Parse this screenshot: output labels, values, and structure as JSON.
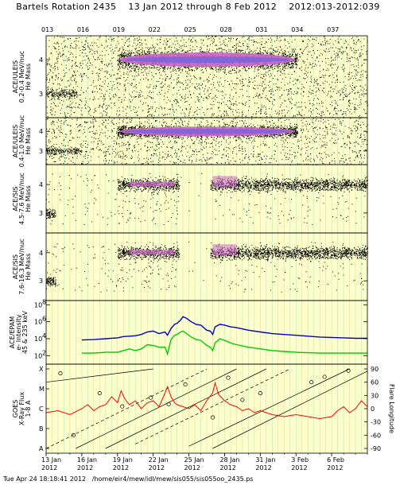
{
  "header": {
    "title": "Bartels Rotation 2435    13 Jan 2012 through 8 Feb 2012    2012:013-2012:039"
  },
  "footer": {
    "text": "Tue Apr 24 18:18:41 2012   /home/eir4/mew/idl/mew/sis055/sis055oo_2435.ps"
  },
  "colors": {
    "background_band": "#ffffcc",
    "vgrid": "#bfe8bf",
    "dense_core": "#cc66cc",
    "dense_center": "#7766dd",
    "epam_high": "#0000cc",
    "epam_low": "#00cc00",
    "xray": "#ff0000",
    "scatter": "#000000"
  },
  "chart_data": [
    {
      "type": "scatter",
      "ylabel_lines": [
        "ACE/ULEIS",
        "0.2-0.4 MeV/nuc",
        "He Mass"
      ],
      "yticks": [
        "4",
        "3"
      ],
      "doy_ticks": [
        "013",
        "016",
        "019",
        "022",
        "025",
        "028",
        "031",
        "034",
        "037"
      ],
      "xlim_doy": [
        13,
        40
      ],
      "ylim": [
        2.3,
        4.7
      ],
      "features": {
        "he4_band": {
          "center": 4.0,
          "start_doy": 19.0,
          "end_doy": 34.1
        },
        "he3_band": {
          "center": 3.0,
          "start_doy": 13.0,
          "end_doy": 15.6
        },
        "background_density": "high"
      }
    },
    {
      "type": "scatter",
      "ylabel_lines": [
        "ACE/ULEIS",
        "0.4-1.0 MeV/nuc",
        "He Mass"
      ],
      "yticks": [
        "4",
        "3"
      ],
      "xlim_doy": [
        13,
        40
      ],
      "ylim": [
        2.3,
        4.7
      ],
      "features": {
        "he4_band": {
          "center": 4.0,
          "start_doy": 19.0,
          "end_doy": 34.1
        },
        "he3_band": {
          "center": 3.0,
          "start_doy": 13.0,
          "end_doy": 16.0
        },
        "background_density": "medium"
      }
    },
    {
      "type": "scatter",
      "ylabel_lines": [
        "ACE/SIS",
        "4.5-7.6 MeV/nuc",
        "He Mass"
      ],
      "yticks": [
        "4",
        "3"
      ],
      "xlim_doy": [
        13,
        40
      ],
      "ylim": [
        2.3,
        4.7
      ],
      "features": {
        "he4_band": {
          "center": 4.0,
          "start_doy": 19.0,
          "end_doy": 40.0,
          "gap_doy": [
            24.2,
            26.8
          ]
        },
        "he3_band": {
          "center": 3.0,
          "start_doy": 13.0,
          "end_doy": 13.8
        }
      }
    },
    {
      "type": "scatter",
      "ylabel_lines": [
        "ACE/SIS",
        "7.6-16.3 MeV/nuc",
        "He Mass"
      ],
      "yticks": [
        "4",
        "3"
      ],
      "xlim_doy": [
        13,
        40
      ],
      "ylim": [
        2.3,
        4.7
      ],
      "features": {
        "he4_band": {
          "center": 4.0,
          "start_doy": 19.0,
          "end_doy": 40.0,
          "gap_doy": [
            24.2,
            26.8
          ]
        },
        "he3_band": {
          "center": 3.0,
          "start_doy": 13.0,
          "end_doy": 13.8
        }
      }
    },
    {
      "type": "line",
      "ylabel_lines": [
        "ACE/EPAM",
        "e- Intensity",
        "45 & 235 keV"
      ],
      "yscale": "log",
      "ylim_exp": [
        1,
        8.5
      ],
      "ytick_labels": [
        {
          "base": "10",
          "exp": "8"
        },
        {
          "base": "10",
          "exp": "6"
        },
        {
          "base": "10",
          "exp": "4"
        },
        {
          "base": "10",
          "exp": "2"
        }
      ],
      "ytick_exps": [
        8,
        6,
        4,
        2
      ],
      "xlim_doy": [
        13,
        40
      ],
      "series": [
        {
          "color_key": "epam_high",
          "x": [
            16.0,
            17,
            18,
            19,
            19.5,
            20,
            20.5,
            21,
            21.5,
            22,
            22.5,
            23,
            23.2,
            23.5,
            23.8,
            24,
            24.3,
            24.5,
            24.8,
            25.2,
            25.6,
            26,
            26.5,
            26.8,
            27.0,
            27.2,
            27.6,
            28,
            28.5,
            29,
            30,
            31,
            32,
            33,
            34,
            35,
            36,
            37,
            38,
            39,
            40
          ],
          "y_exp": [
            3.85,
            3.9,
            4.0,
            4.1,
            4.25,
            4.3,
            4.35,
            4.5,
            4.8,
            4.9,
            4.6,
            4.8,
            4.4,
            5.2,
            5.7,
            5.8,
            6.2,
            6.6,
            6.4,
            6.0,
            5.7,
            5.6,
            5.0,
            4.9,
            4.5,
            5.4,
            5.7,
            5.6,
            5.4,
            5.3,
            5.0,
            4.8,
            4.6,
            4.5,
            4.4,
            4.3,
            4.2,
            4.15,
            4.1,
            4.05,
            4.05
          ]
        },
        {
          "color_key": "epam_low",
          "x": [
            16.0,
            17,
            18,
            19,
            19.5,
            20,
            20.5,
            21,
            21.5,
            22,
            22.5,
            23,
            23.2,
            23.5,
            23.8,
            24,
            24.3,
            24.5,
            24.8,
            25.2,
            25.6,
            26,
            26.5,
            26.8,
            27.0,
            27.2,
            27.6,
            28,
            28.5,
            29,
            30,
            31,
            32,
            33,
            34,
            35,
            36,
            37,
            38,
            39,
            40
          ],
          "y_exp": [
            2.3,
            2.3,
            2.4,
            2.4,
            2.6,
            2.8,
            2.6,
            2.8,
            3.3,
            3.2,
            3.0,
            3.0,
            2.2,
            3.9,
            4.4,
            4.5,
            4.8,
            4.9,
            4.6,
            4.2,
            3.9,
            3.8,
            3.2,
            3.0,
            2.6,
            3.5,
            4.0,
            3.8,
            3.5,
            3.3,
            3.0,
            2.8,
            2.6,
            2.5,
            2.4,
            2.35,
            2.3,
            2.3,
            2.3,
            2.3,
            2.3
          ]
        }
      ]
    },
    {
      "type": "line",
      "ylabel_lines": [
        "GOES",
        "X-Ray Flux",
        "1-8 A"
      ],
      "left_ticks": [
        "X",
        "M",
        "C",
        "B",
        "A"
      ],
      "right_ticks": [
        "90",
        "60",
        "30",
        "0",
        "-30",
        "-60",
        "-90"
      ],
      "right_label": "Flare Longitude",
      "xlim_doy": [
        13,
        40
      ],
      "xray_class_levels": {
        "A": 0,
        "B": 1,
        "C": 2,
        "M": 3,
        "X": 4
      },
      "xray_series": {
        "x": [
          13,
          14,
          15,
          16,
          16.5,
          17,
          17.5,
          18,
          18.5,
          19,
          19.3,
          19.6,
          20,
          20.5,
          21,
          21.5,
          22,
          22.5,
          23,
          23.2,
          23.5,
          23.8,
          24,
          24.5,
          25,
          25.5,
          26,
          26.5,
          27,
          27.2,
          27.5,
          28,
          28.5,
          29,
          29.5,
          30,
          30.5,
          31,
          31.5,
          32,
          33,
          34,
          35,
          36,
          37,
          37.5,
          38,
          38.5,
          39,
          39.5,
          40
        ],
        "y_class": [
          1.8,
          1.9,
          1.7,
          2.0,
          2.2,
          1.9,
          2.1,
          2.2,
          2.6,
          2.3,
          2.9,
          2.5,
          2.2,
          2.4,
          2.0,
          2.3,
          2.4,
          2.1,
          2.8,
          3.1,
          2.6,
          2.3,
          2.2,
          2.1,
          2.0,
          2.2,
          1.9,
          2.4,
          2.8,
          3.3,
          2.7,
          2.4,
          2.2,
          2.1,
          1.9,
          2.0,
          1.8,
          1.9,
          1.8,
          1.7,
          1.6,
          1.7,
          1.6,
          1.5,
          1.6,
          1.9,
          2.1,
          1.8,
          2.0,
          2.4,
          2.1
        ]
      },
      "longitude_tracks": [
        {
          "x0": 13.0,
          "lon0": 60,
          "x1": 22.0,
          "lon1": 90
        },
        {
          "x0": 13.0,
          "lon0": -90,
          "x1": 26.5,
          "lon1": 90
        },
        {
          "x0": 15.5,
          "lon0": -90,
          "x1": 29.0,
          "lon1": 90
        },
        {
          "x0": 18.0,
          "lon0": -90,
          "x1": 31.5,
          "lon1": 90
        },
        {
          "x0": 20.5,
          "lon0": -80,
          "x1": 33.5,
          "lon1": 90
        },
        {
          "x0": 25.0,
          "lon0": -85,
          "x1": 38.5,
          "lon1": 90
        },
        {
          "x0": 27.0,
          "lon0": -90,
          "x1": 40.0,
          "lon1": 85
        }
      ],
      "flare_markers": [
        {
          "x": 14.2,
          "lon": 80
        },
        {
          "x": 15.3,
          "lon": -60
        },
        {
          "x": 17.5,
          "lon": 35
        },
        {
          "x": 19.4,
          "lon": 5
        },
        {
          "x": 21.8,
          "lon": 25
        },
        {
          "x": 23.3,
          "lon": 10
        },
        {
          "x": 24.7,
          "lon": 55
        },
        {
          "x": 27.0,
          "lon": -20
        },
        {
          "x": 28.3,
          "lon": 70
        },
        {
          "x": 29.5,
          "lon": 20
        },
        {
          "x": 31.0,
          "lon": 35
        },
        {
          "x": 36.4,
          "lon": 72
        },
        {
          "x": 38.4,
          "lon": 86
        },
        {
          "x": 35.3,
          "lon": 60
        }
      ]
    }
  ],
  "x_axis": {
    "doy_positions": [
      13,
      16,
      19,
      22,
      25,
      28,
      31,
      34,
      37
    ],
    "date_labels": [
      {
        "doy": 13,
        "day": "13 Jan",
        "year": "2012"
      },
      {
        "doy": 16,
        "day": "16 Jan",
        "year": "2012"
      },
      {
        "doy": 19,
        "day": "19 Jan",
        "year": "2012"
      },
      {
        "doy": 22,
        "day": "22 Jan",
        "year": "2012"
      },
      {
        "doy": 25,
        "day": "25 Jan",
        "year": "2012"
      },
      {
        "doy": 28,
        "day": "28 Jan",
        "year": "2012"
      },
      {
        "doy": 31,
        "day": "31 Jan",
        "year": "2012"
      },
      {
        "doy": 34,
        "day": "3 Feb",
        "year": "2012"
      },
      {
        "doy": 37,
        "day": "6 Feb",
        "year": "2012"
      }
    ]
  }
}
